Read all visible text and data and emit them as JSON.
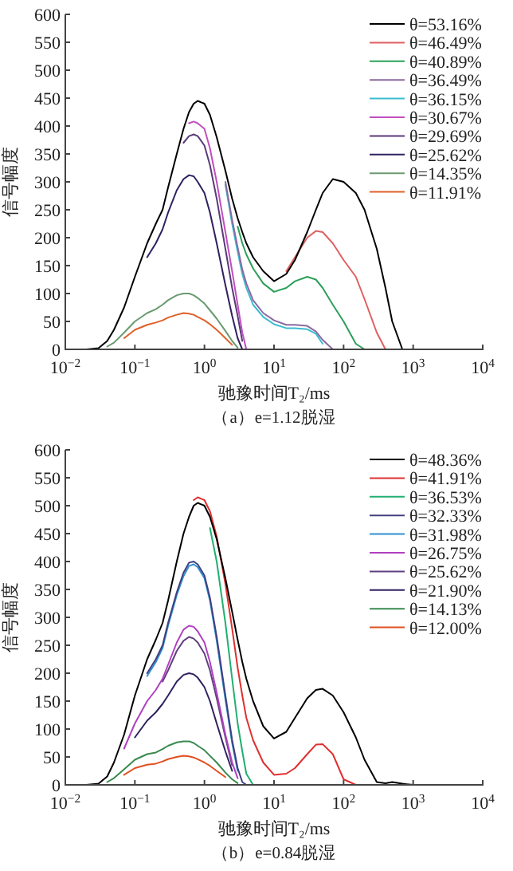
{
  "chart_data": [
    {
      "type": "line",
      "title": "（a）e=1.12脱湿",
      "xlabel": "驰豫时间T₂/ms",
      "ylabel": "信号幅度",
      "log": "x",
      "grid": false,
      "legend": "top right",
      "line_style": "solid",
      "xlim": [
        0.01,
        10000
      ],
      "ylim": [
        0,
        600
      ],
      "xticks": [
        {
          "value": 0.01,
          "label": "10$^{−2}$"
        },
        {
          "value": 0.1,
          "label": "10$^{−1}$"
        },
        {
          "value": 1,
          "label": "10$^{0}$"
        },
        {
          "value": 10,
          "label": "10$^{1}$"
        },
        {
          "value": 100,
          "label": "10$^{2}$"
        },
        {
          "value": 1000,
          "label": "10$^{3}$"
        },
        {
          "value": 10000,
          "label": "10$^{4}$"
        }
      ],
      "yticks": [
        0,
        50,
        100,
        150,
        200,
        250,
        300,
        350,
        400,
        450,
        500,
        550,
        600
      ],
      "x": [
        0.01,
        0.02,
        0.03,
        0.04,
        0.05,
        0.07,
        0.1,
        0.15,
        0.2,
        0.25,
        0.3,
        0.4,
        0.5,
        0.6,
        0.7,
        0.8,
        1,
        1.2,
        1.5,
        2,
        2.5,
        3,
        3.5,
        4,
        5,
        7,
        10,
        15,
        20,
        30,
        40,
        50,
        70,
        100,
        150,
        200,
        300,
        400,
        500,
        700,
        1000,
        2000,
        10000
      ],
      "series": [
        {
          "name": "θ=53.16%",
          "color": "#000000",
          "values": [
            0,
            0,
            2,
            15,
            35,
            75,
            130,
            190,
            225,
            250,
            290,
            350,
            395,
            425,
            440,
            445,
            440,
            420,
            380,
            320,
            270,
            235,
            210,
            190,
            165,
            140,
            122,
            135,
            160,
            210,
            250,
            280,
            305,
            300,
            280,
            250,
            180,
            110,
            50,
            0,
            0,
            0,
            0
          ]
        },
        {
          "name": "θ=46.49%",
          "color": "#e06060",
          "x": [
            15,
            20,
            30,
            40,
            50,
            70,
            100,
            150,
            200,
            300,
            400
          ],
          "values": [
            140,
            165,
            200,
            212,
            210,
            190,
            160,
            130,
            90,
            30,
            0
          ]
        },
        {
          "name": "θ=40.89%",
          "color": "#2ca05a",
          "x": [
            3,
            3.5,
            4,
            5,
            7,
            10,
            15,
            20,
            30,
            40,
            50,
            70,
            100,
            150,
            200
          ],
          "values": [
            220,
            190,
            170,
            145,
            118,
            103,
            110,
            122,
            130,
            125,
            110,
            80,
            50,
            10,
            0
          ]
        },
        {
          "name": "θ=36.49%",
          "color": "#8a6aa0",
          "x": [
            2,
            2.5,
            3,
            3.5,
            4,
            5,
            7,
            10,
            15,
            20,
            30,
            40,
            50,
            70
          ],
          "values": [
            300,
            232,
            183,
            143,
            118,
            88,
            65,
            52,
            44,
            44,
            42,
            32,
            17,
            0
          ]
        },
        {
          "name": "θ=36.15%",
          "color": "#3bbcd0",
          "x": [
            2,
            2.5,
            3,
            3.5,
            4,
            5,
            7,
            10,
            15,
            20,
            30,
            40,
            50
          ],
          "values": [
            295,
            225,
            175,
            135,
            110,
            80,
            58,
            45,
            38,
            38,
            36,
            28,
            10
          ]
        },
        {
          "name": "θ=30.67%",
          "color": "#c04fc0",
          "x": [
            0.6,
            0.7,
            0.8,
            1,
            1.2,
            1.5,
            2,
            2.5,
            3,
            3.5,
            4
          ],
          "values": [
            405,
            408,
            405,
            395,
            360,
            300,
            210,
            140,
            80,
            30,
            0
          ]
        },
        {
          "name": "θ=29.69%",
          "color": "#5a3a7a",
          "x": [
            0.5,
            0.6,
            0.7,
            0.8,
            1,
            1.2,
            1.5,
            2,
            2.5,
            3,
            3.5
          ],
          "values": [
            370,
            382,
            385,
            382,
            365,
            330,
            270,
            180,
            110,
            60,
            15
          ]
        },
        {
          "name": "θ=25.62%",
          "color": "#302060",
          "x": [
            0.15,
            0.2,
            0.25,
            0.3,
            0.4,
            0.5,
            0.6,
            0.7,
            0.8,
            1,
            1.2,
            1.5,
            2,
            2.5,
            3,
            3.5
          ],
          "values": [
            165,
            190,
            215,
            245,
            285,
            305,
            312,
            310,
            300,
            280,
            245,
            190,
            115,
            60,
            20,
            0
          ]
        },
        {
          "name": "θ=14.35%",
          "color": "#6a9a70",
          "x": [
            0.04,
            0.05,
            0.07,
            0.1,
            0.15,
            0.2,
            0.25,
            0.3,
            0.4,
            0.5,
            0.6,
            0.7,
            0.8,
            1,
            1.2,
            1.5,
            2,
            2.5,
            3
          ],
          "values": [
            5,
            12,
            30,
            50,
            65,
            72,
            80,
            88,
            97,
            100,
            100,
            97,
            92,
            82,
            70,
            55,
            33,
            15,
            3
          ]
        },
        {
          "name": "θ=11.91%",
          "color": "#e0602a",
          "x": [
            0.07,
            0.1,
            0.15,
            0.2,
            0.25,
            0.3,
            0.4,
            0.5,
            0.6,
            0.7,
            0.8,
            1,
            1.2,
            1.5,
            2,
            2.5
          ],
          "values": [
            20,
            35,
            44,
            48,
            52,
            57,
            62,
            65,
            64,
            62,
            58,
            52,
            45,
            35,
            20,
            8
          ]
        }
      ]
    },
    {
      "type": "line",
      "title": "（b）e=0.84脱湿",
      "xlabel": "驰豫时间T₂/ms",
      "ylabel": "信号幅度",
      "log": "x",
      "grid": false,
      "legend": "top right",
      "line_style": "solid",
      "xlim": [
        0.01,
        10000
      ],
      "ylim": [
        0,
        600
      ],
      "xticks": [
        {
          "value": 0.01,
          "label": "10$^{−2}$"
        },
        {
          "value": 0.1,
          "label": "10$^{−1}$"
        },
        {
          "value": 1,
          "label": "10$^{0}$"
        },
        {
          "value": 10,
          "label": "10$^{1}$"
        },
        {
          "value": 100,
          "label": "10$^{2}$"
        },
        {
          "value": 1000,
          "label": "10$^{3}$"
        },
        {
          "value": 10000,
          "label": "10$^{4}$"
        }
      ],
      "yticks": [
        0,
        50,
        100,
        150,
        200,
        250,
        300,
        350,
        400,
        450,
        500,
        550,
        600
      ],
      "x": [
        0.01,
        0.02,
        0.03,
        0.04,
        0.05,
        0.07,
        0.1,
        0.15,
        0.2,
        0.25,
        0.3,
        0.4,
        0.5,
        0.6,
        0.7,
        0.8,
        1,
        1.2,
        1.5,
        2,
        2.5,
        3,
        3.5,
        4,
        5,
        7,
        10,
        15,
        20,
        30,
        40,
        50,
        70,
        100,
        150,
        200,
        300,
        400,
        500,
        700,
        1000,
        2000,
        10000
      ],
      "series": [
        {
          "name": "θ=48.36%",
          "color": "#000000",
          "values": [
            0,
            0,
            2,
            15,
            40,
            90,
            160,
            225,
            260,
            290,
            330,
            400,
            450,
            480,
            500,
            505,
            500,
            480,
            440,
            370,
            310,
            260,
            220,
            190,
            150,
            105,
            83,
            95,
            120,
            155,
            170,
            172,
            160,
            130,
            85,
            45,
            5,
            3,
            5,
            2,
            0,
            0,
            0
          ]
        },
        {
          "name": "θ=41.91%",
          "color": "#e03030",
          "x": [
            0.7,
            0.8,
            1,
            1.2,
            1.5,
            2,
            2.5,
            3,
            3.5,
            4,
            5,
            7,
            10,
            15,
            20,
            30,
            40,
            50,
            70,
            100,
            150
          ],
          "values": [
            510,
            515,
            510,
            490,
            445,
            360,
            280,
            210,
            160,
            120,
            80,
            40,
            18,
            20,
            30,
            55,
            72,
            73,
            55,
            10,
            0
          ]
        },
        {
          "name": "θ=36.53%",
          "color": "#20b070",
          "x": [
            1.2,
            1.5,
            2,
            2.5,
            3,
            3.5,
            4,
            5
          ],
          "values": [
            460,
            400,
            290,
            190,
            110,
            60,
            20,
            0
          ]
        },
        {
          "name": "θ=32.33%",
          "color": "#404080",
          "x": [
            0.15,
            0.2,
            0.25,
            0.3,
            0.4,
            0.5,
            0.6,
            0.7,
            0.8,
            1,
            1.2,
            1.5,
            2,
            2.5,
            3,
            3.5,
            4
          ],
          "values": [
            200,
            225,
            250,
            290,
            345,
            380,
            398,
            400,
            395,
            375,
            335,
            265,
            160,
            80,
            30,
            5,
            0
          ]
        },
        {
          "name": "θ=31.98%",
          "color": "#3090d0",
          "x": [
            0.15,
            0.2,
            0.25,
            0.3,
            0.4,
            0.5,
            0.6,
            0.7,
            0.8,
            1,
            1.2,
            1.5,
            2,
            2.5,
            3
          ],
          "values": [
            195,
            220,
            245,
            285,
            340,
            374,
            392,
            395,
            390,
            370,
            330,
            258,
            153,
            75,
            25
          ]
        },
        {
          "name": "θ=26.75%",
          "color": "#b040c0",
          "x": [
            0.07,
            0.1,
            0.15,
            0.2,
            0.25,
            0.3,
            0.4,
            0.5,
            0.6,
            0.7,
            0.8,
            1,
            1.2,
            1.5,
            2,
            2.5,
            3
          ],
          "values": [
            65,
            110,
            150,
            170,
            190,
            215,
            255,
            278,
            285,
            283,
            275,
            255,
            220,
            165,
            90,
            40,
            12
          ]
        },
        {
          "name": "θ=25.62%",
          "color": "#604080",
          "x": [
            0.25,
            0.3,
            0.4,
            0.5,
            0.6,
            0.7,
            0.8,
            1,
            1.2,
            1.5,
            2,
            2.5
          ],
          "values": [
            185,
            205,
            240,
            258,
            265,
            262,
            255,
            235,
            205,
            155,
            85,
            35
          ]
        },
        {
          "name": "θ=21.90%",
          "color": "#302060",
          "x": [
            0.1,
            0.15,
            0.2,
            0.25,
            0.3,
            0.4,
            0.5,
            0.6,
            0.7,
            0.8,
            1,
            1.2,
            1.5,
            2,
            2.5
          ],
          "values": [
            85,
            115,
            130,
            145,
            160,
            185,
            197,
            200,
            198,
            192,
            175,
            150,
            110,
            60,
            25
          ]
        },
        {
          "name": "θ=14.13%",
          "color": "#3a8a50",
          "x": [
            0.04,
            0.05,
            0.07,
            0.1,
            0.15,
            0.2,
            0.25,
            0.3,
            0.4,
            0.5,
            0.6,
            0.7,
            0.8,
            1,
            1.2,
            1.5,
            2,
            2.5,
            3
          ],
          "values": [
            5,
            12,
            28,
            45,
            55,
            58,
            64,
            70,
            76,
            78,
            78,
            75,
            70,
            62,
            52,
            40,
            22,
            10,
            3
          ]
        },
        {
          "name": "θ=12.00%",
          "color": "#e05020",
          "x": [
            0.07,
            0.1,
            0.15,
            0.2,
            0.25,
            0.3,
            0.4,
            0.5,
            0.6,
            0.7,
            0.8,
            1,
            1.2,
            1.5,
            2
          ],
          "values": [
            18,
            30,
            36,
            38,
            42,
            46,
            50,
            52,
            51,
            49,
            46,
            40,
            34,
            25,
            14
          ]
        }
      ]
    }
  ]
}
